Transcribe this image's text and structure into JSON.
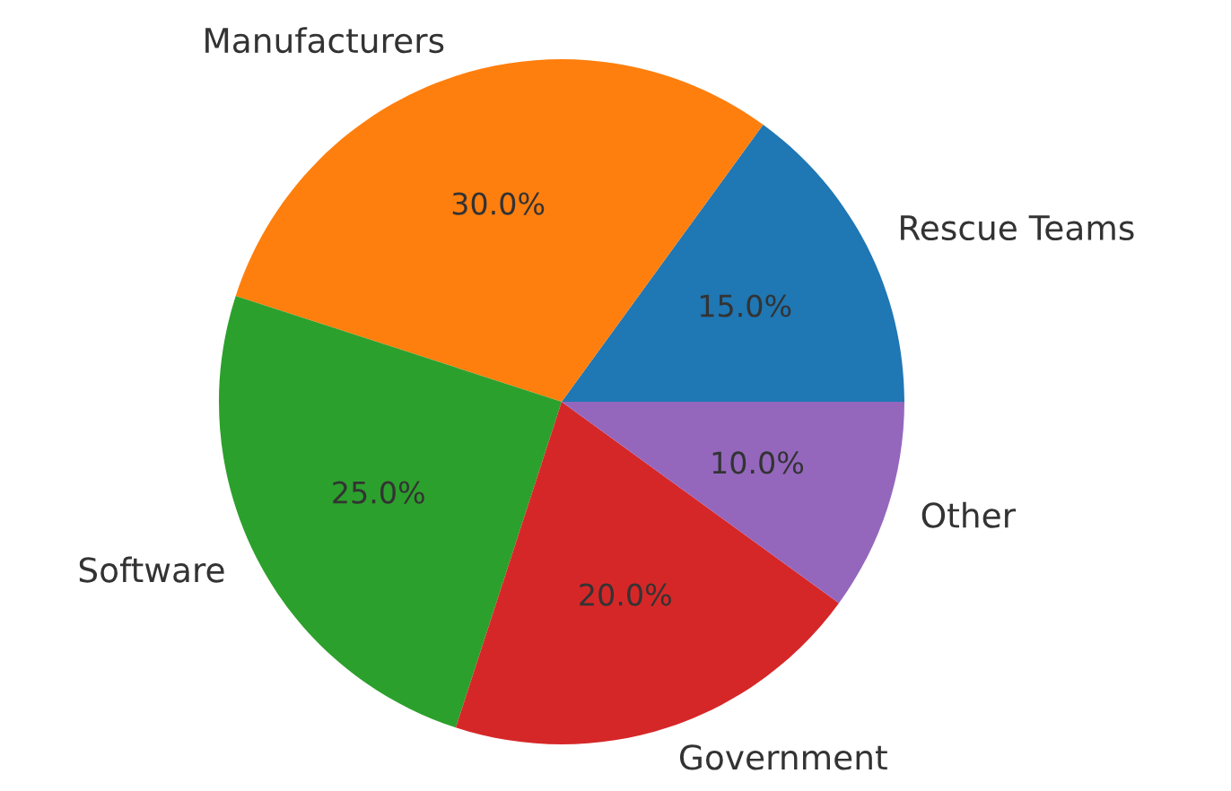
{
  "chart_data": {
    "type": "pie",
    "categories": [
      "Rescue Teams",
      "Manufacturers",
      "Software",
      "Government",
      "Other"
    ],
    "values": [
      15,
      30,
      25,
      20,
      10
    ],
    "colors": [
      "#1f77b4",
      "#ff7f0e",
      "#2ca02c",
      "#d62728",
      "#9467bd"
    ],
    "value_labels": [
      "15.0%",
      "30.0%",
      "25.0%",
      "20.0%",
      "10.0%"
    ]
  }
}
